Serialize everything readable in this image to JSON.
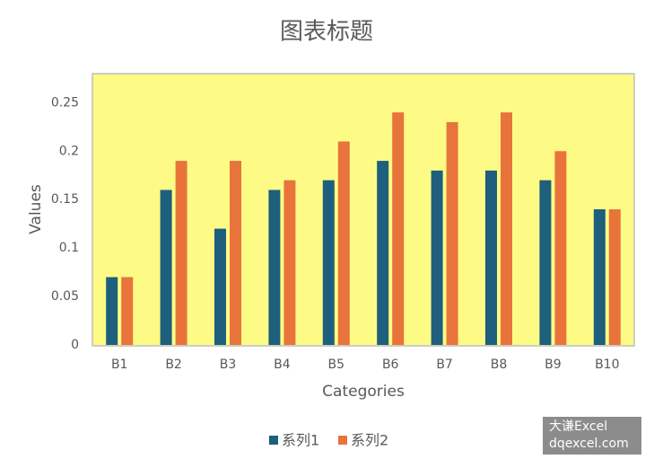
{
  "chart_data": {
    "type": "bar",
    "title": "图表标题",
    "x_label": "Categories",
    "y_label": "Values",
    "categories": [
      "B1",
      "B2",
      "B3",
      "B4",
      "B5",
      "B6",
      "B7",
      "B8",
      "B9",
      "B10"
    ],
    "series": [
      {
        "name": "系列1",
        "color": "#1d5f7c",
        "values": [
          0.07,
          0.16,
          0.12,
          0.16,
          0.17,
          0.19,
          0.18,
          0.18,
          0.17,
          0.14
        ]
      },
      {
        "name": "系列2",
        "color": "#e8743b",
        "values": [
          0.07,
          0.19,
          0.19,
          0.17,
          0.21,
          0.24,
          0.23,
          0.24,
          0.2,
          0.14
        ]
      }
    ],
    "ylim": [
      0,
      0.28
    ],
    "yticks": [
      0,
      0.05,
      0.1,
      0.15,
      0.2,
      0.25
    ],
    "grid": false,
    "plot_background": "#fdfb86",
    "legend": "bottom",
    "annotations": [
      "大谦Excel",
      "dqexcel.com"
    ]
  }
}
